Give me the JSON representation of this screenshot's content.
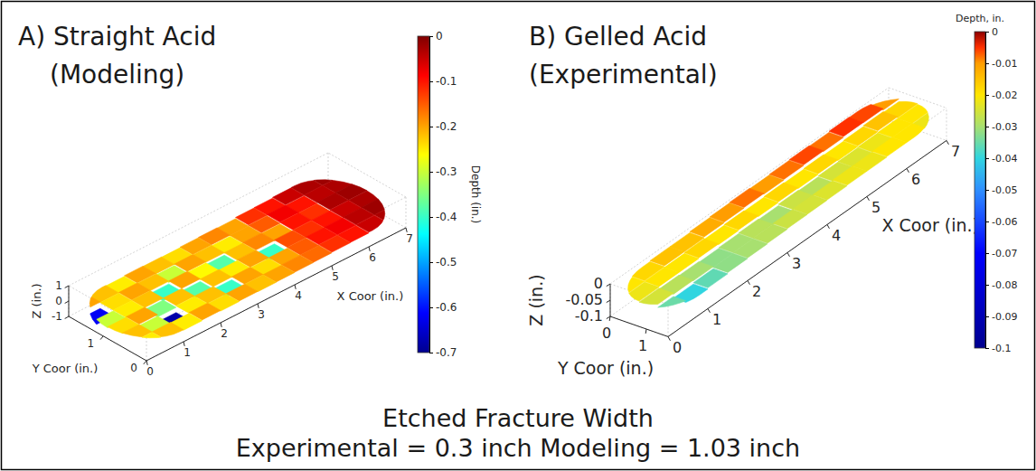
{
  "chart_data": [
    {
      "type": "surface",
      "title": "A) Straight Acid",
      "subtitle": "(Modeling)",
      "x_label": "X Coor (in.)",
      "y_label": "Y Coor (in.)",
      "z_label": "Z (in.)",
      "xlim": [
        0,
        7
      ],
      "ylim": [
        0,
        1.8
      ],
      "zlim": [
        -1,
        1
      ],
      "xticks": [
        0,
        1,
        2,
        3,
        4,
        5,
        6,
        7
      ],
      "yticks": [
        0,
        1
      ],
      "zticks": [
        -1,
        0,
        1
      ],
      "x_bins": [
        0,
        0.5,
        1,
        1.5,
        2,
        2.5,
        3,
        3.5,
        4,
        4.5,
        5,
        5.5,
        6,
        6.5,
        7
      ],
      "y_bins": [
        0,
        0.3,
        0.6,
        0.9,
        1.2,
        1.5,
        1.8
      ],
      "depth": [
        [
          -0.25,
          -0.22,
          -0.25,
          -0.2,
          -0.24,
          -0.2,
          -0.22,
          -0.2,
          -0.18,
          -0.16,
          -0.12,
          -0.1,
          -0.05,
          -0.03
        ],
        [
          -0.22,
          -0.3,
          -0.68,
          -0.25,
          -0.22,
          -0.4,
          -0.2,
          -0.24,
          -0.2,
          -0.15,
          -0.1,
          -0.08,
          -0.04,
          -0.02
        ],
        [
          -0.24,
          -0.2,
          -0.35,
          -0.22,
          -0.38,
          -0.22,
          -0.25,
          -0.2,
          -0.4,
          -0.14,
          -0.12,
          -0.1,
          -0.05,
          -0.03
        ],
        [
          -0.3,
          -0.25,
          -0.22,
          -0.4,
          -0.2,
          -0.26,
          -0.38,
          -0.22,
          -0.18,
          -0.2,
          -0.1,
          -0.12,
          -0.03,
          -0.02
        ],
        [
          -0.62,
          -0.24,
          -0.2,
          -0.22,
          -0.3,
          -0.2,
          -0.22,
          -0.25,
          -0.2,
          -0.15,
          -0.08,
          -0.1,
          -0.04,
          -0.03
        ],
        [
          -0.2,
          -0.22,
          -0.25,
          -0.2,
          -0.22,
          -0.24,
          -0.2,
          -0.18,
          -0.2,
          -0.12,
          -0.1,
          -0.05,
          -0.03,
          -0.02
        ]
      ],
      "color_label": "Depth (in.)",
      "color_range": [
        -0.7,
        0
      ],
      "color_ticks": [
        0,
        -0.1,
        -0.2,
        -0.3,
        -0.4,
        -0.5,
        -0.6,
        -0.7
      ]
    },
    {
      "type": "surface",
      "title": "B) Gelled Acid",
      "subtitle": "(Experimental)",
      "x_label": "X Coor (in.)",
      "y_label": "Y Coor (in.)",
      "z_label": "Z (in.)",
      "xlim": [
        0,
        7
      ],
      "ylim": [
        0,
        1.6
      ],
      "zlim": [
        -0.1,
        0
      ],
      "xticks": [
        0,
        1,
        2,
        3,
        4,
        5,
        6,
        7
      ],
      "yticks": [
        0,
        1
      ],
      "zticks": [
        -0.1,
        -0.05,
        0
      ],
      "x_bins": [
        0,
        0.5,
        1,
        1.5,
        2,
        2.5,
        3,
        3.5,
        4,
        4.5,
        5,
        5.5,
        6,
        6.5,
        7
      ],
      "y_bins": [
        0,
        0.4,
        0.8,
        1.2,
        1.6
      ],
      "depth": [
        [
          -0.02,
          -0.018,
          -0.015,
          -0.015,
          -0.012,
          -0.01,
          -0.008,
          -0.01,
          -0.008,
          -0.006,
          -0.008,
          -0.005,
          -0.006,
          -0.01
        ],
        [
          -0.022,
          -0.02,
          -0.02,
          -0.018,
          -0.02,
          -0.018,
          -0.02,
          -0.018,
          -0.02,
          -0.018,
          -0.02,
          -0.018,
          -0.015,
          -0.018
        ],
        [
          -0.025,
          -0.028,
          -0.03,
          -0.032,
          -0.03,
          -0.028,
          -0.03,
          -0.026,
          -0.028,
          -0.025,
          -0.024,
          -0.022,
          -0.02,
          -0.02
        ],
        [
          -0.035,
          -0.04,
          -0.036,
          -0.032,
          -0.03,
          -0.028,
          -0.026,
          -0.025,
          -0.024,
          -0.022,
          -0.022,
          -0.02,
          -0.02,
          -0.022
        ]
      ],
      "color_label": "Depth, in.",
      "color_range": [
        -0.1,
        0
      ],
      "color_ticks": [
        0,
        -0.01,
        -0.02,
        -0.03,
        -0.04,
        -0.05,
        -0.06,
        -0.07,
        -0.08,
        -0.09,
        -0.1
      ]
    }
  ],
  "caption": [
    "Etched Fracture Width",
    "Experimental = 0.3 inch   Modeling = 1.03 inch"
  ]
}
